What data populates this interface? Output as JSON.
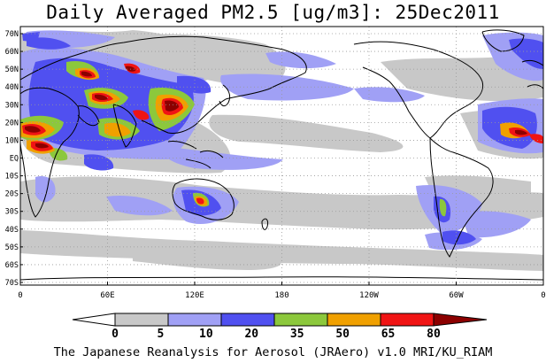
{
  "title": "Daily Averaged PM2.5 [ug/m3]: 25Dec2011",
  "lat_ticks": [
    "70N",
    "60N",
    "50N",
    "40N",
    "30N",
    "20N",
    "10N",
    "EQ",
    "10S",
    "20S",
    "30S",
    "40S",
    "50S",
    "60S",
    "70S"
  ],
  "lon_ticks": [
    "0",
    "60E",
    "120E",
    "180",
    "120W",
    "60W",
    "0"
  ],
  "colorbar": {
    "thresholds": [
      "0",
      "5",
      "10",
      "20",
      "35",
      "50",
      "65",
      "80"
    ],
    "colors": [
      "#ffffff",
      "#c8c8c8",
      "#a0a0f5",
      "#5050f0",
      "#8cc83c",
      "#f0a000",
      "#f01414",
      "#8c0000"
    ]
  },
  "footer": "The Japanese Reanalysis for Aerosol (JRAero) v1.0 MRI/KU_RIAM"
}
